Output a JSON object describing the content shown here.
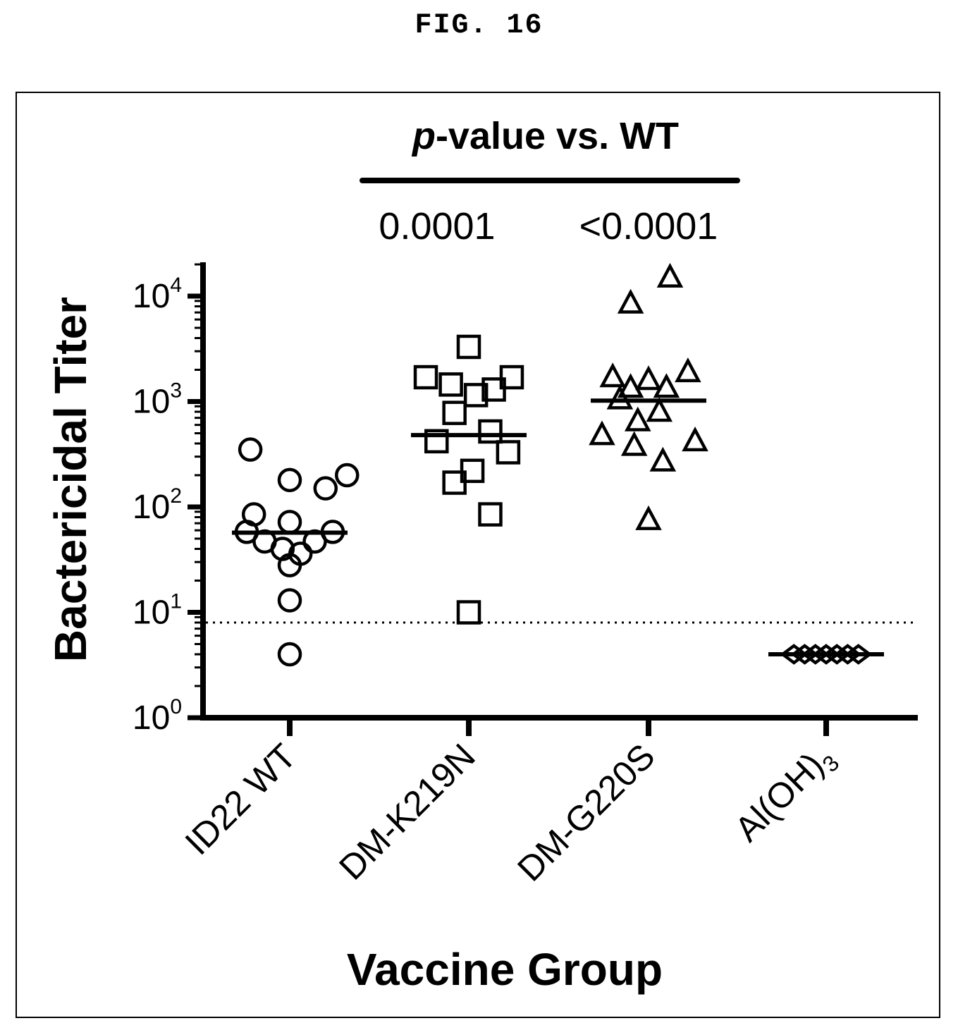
{
  "figure_label": "FIG. 16",
  "chart_data": {
    "type": "scatter",
    "title": "",
    "xlabel": "Vaccine Group",
    "ylabel": "Bactericidal Titer",
    "yscale": "log",
    "ylim": [
      1,
      20000
    ],
    "yticks": [
      {
        "base": "10",
        "exp": "0",
        "value": 1
      },
      {
        "base": "10",
        "exp": "1",
        "value": 10
      },
      {
        "base": "10",
        "exp": "2",
        "value": 100
      },
      {
        "base": "10",
        "exp": "3",
        "value": 1000
      },
      {
        "base": "10",
        "exp": "4",
        "value": 10000
      }
    ],
    "categories": [
      "ID22 WT",
      "DM-K219N",
      "DM-G220S",
      "Al(OH)3"
    ],
    "category_labels": [
      {
        "text": "ID22 WT",
        "sub": ""
      },
      {
        "text": "DM-K219N",
        "sub": ""
      },
      {
        "text": "DM-G220S",
        "sub": ""
      },
      {
        "text": "Al(OH)",
        "sub": "3"
      }
    ],
    "markers": [
      "circle",
      "square",
      "triangle",
      "diamond"
    ],
    "threshold": 8,
    "grid": false,
    "pvalue_header": {
      "italic": "p",
      "rest": "-value vs. WT"
    },
    "pvalues": [
      {
        "group": "DM-K219N",
        "value": "0.0001"
      },
      {
        "group": "DM-G220S",
        "value": "<0.0001"
      }
    ],
    "series": [
      {
        "group": "ID22 WT",
        "median": 57,
        "points": [
          {
            "dx": -0.22,
            "y": 350
          },
          {
            "dx": 0.0,
            "y": 180
          },
          {
            "dx": 0.32,
            "y": 200
          },
          {
            "dx": 0.2,
            "y": 150
          },
          {
            "dx": -0.2,
            "y": 85
          },
          {
            "dx": 0.0,
            "y": 72
          },
          {
            "dx": -0.24,
            "y": 58
          },
          {
            "dx": 0.24,
            "y": 58
          },
          {
            "dx": -0.14,
            "y": 47
          },
          {
            "dx": 0.14,
            "y": 47
          },
          {
            "dx": -0.04,
            "y": 40
          },
          {
            "dx": 0.06,
            "y": 36
          },
          {
            "dx": 0.0,
            "y": 28
          },
          {
            "dx": 0.0,
            "y": 13
          },
          {
            "dx": 0.0,
            "y": 4
          }
        ]
      },
      {
        "group": "DM-K219N",
        "median": 480,
        "points": [
          {
            "dx": 0.0,
            "y": 3300
          },
          {
            "dx": -0.24,
            "y": 1700
          },
          {
            "dx": 0.24,
            "y": 1700
          },
          {
            "dx": -0.1,
            "y": 1450
          },
          {
            "dx": 0.14,
            "y": 1300
          },
          {
            "dx": 0.04,
            "y": 1150
          },
          {
            "dx": -0.08,
            "y": 780
          },
          {
            "dx": 0.12,
            "y": 520
          },
          {
            "dx": -0.18,
            "y": 420
          },
          {
            "dx": 0.22,
            "y": 330
          },
          {
            "dx": 0.02,
            "y": 220
          },
          {
            "dx": -0.08,
            "y": 170
          },
          {
            "dx": 0.12,
            "y": 85
          },
          {
            "dx": 0.0,
            "y": 10
          }
        ]
      },
      {
        "group": "DM-G220S",
        "median": 1020,
        "points": [
          {
            "dx": 0.12,
            "y": 15000
          },
          {
            "dx": -0.1,
            "y": 8500
          },
          {
            "dx": 0.22,
            "y": 1900
          },
          {
            "dx": -0.2,
            "y": 1700
          },
          {
            "dx": 0.0,
            "y": 1600
          },
          {
            "dx": -0.1,
            "y": 1350
          },
          {
            "dx": 0.1,
            "y": 1350
          },
          {
            "dx": -0.16,
            "y": 1050
          },
          {
            "dx": 0.06,
            "y": 800
          },
          {
            "dx": -0.06,
            "y": 650
          },
          {
            "dx": -0.26,
            "y": 480
          },
          {
            "dx": 0.26,
            "y": 420
          },
          {
            "dx": -0.08,
            "y": 380
          },
          {
            "dx": 0.08,
            "y": 270
          },
          {
            "dx": 0.0,
            "y": 75
          }
        ]
      },
      {
        "group": "Al(OH)3",
        "median": 4,
        "points": [
          {
            "dx": -0.18,
            "y": 4
          },
          {
            "dx": -0.12,
            "y": 4
          },
          {
            "dx": -0.06,
            "y": 4
          },
          {
            "dx": 0.0,
            "y": 4
          },
          {
            "dx": 0.06,
            "y": 4
          },
          {
            "dx": 0.12,
            "y": 4
          },
          {
            "dx": 0.18,
            "y": 4
          }
        ]
      }
    ]
  }
}
